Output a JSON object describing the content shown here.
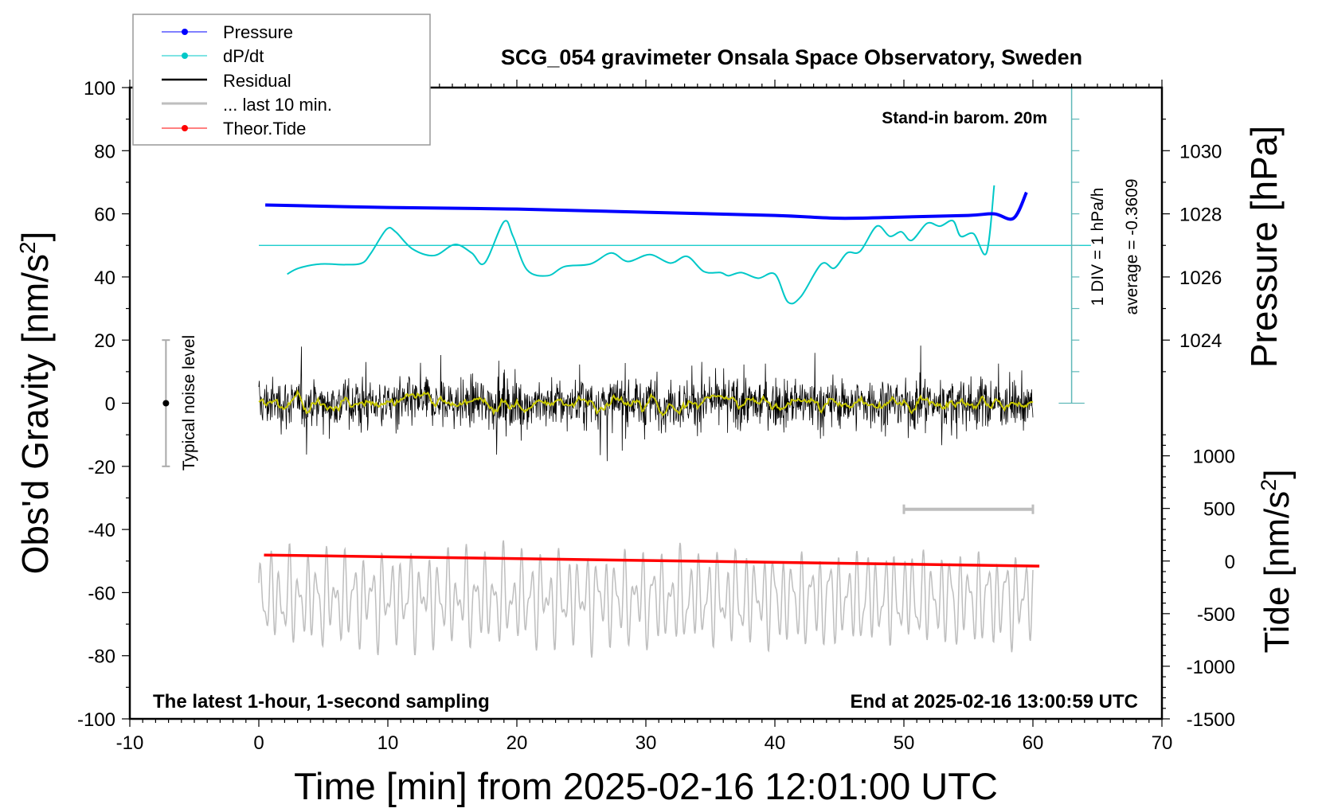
{
  "chart_data": {
    "type": "line",
    "title": "SCG_054 gravimeter Onsala Space Observatory, Sweden",
    "xlabel": "Time [min] from 2025-02-16 12:01:00 UTC",
    "ylabel": "Obs'd Gravity [nm/s",
    "ylabel_sup": "2",
    "ylabel_end": "]",
    "right_ylabel_pressure": "Pressure [hPa]",
    "right_ylabel_tide": "Tide [nm/s",
    "right_ylabel_tide_sup": "2",
    "right_ylabel_tide_end": "]",
    "xlim": [
      -10,
      70
    ],
    "ylim": [
      -100,
      100
    ],
    "x_ticks": [
      "-10",
      "0",
      "10",
      "20",
      "30",
      "40",
      "50",
      "60",
      "70"
    ],
    "y_ticks": [
      "100",
      "80",
      "60",
      "40",
      "20",
      "0",
      "-20",
      "-40",
      "-60",
      "-80",
      "-100"
    ],
    "pressure_ticks": [
      "1030",
      "1028",
      "1026",
      "1024"
    ],
    "tide_ticks": [
      "1000",
      "500",
      "0",
      "-500",
      "-1000",
      "-1500"
    ],
    "annotations": {
      "barometer": "Stand-in barom. 20m",
      "bottom_left": "The latest 1-hour, 1-second sampling",
      "bottom_right": "End at 2025-02-16 13:00:59 UTC",
      "div_scale": "1 DIV = 1 hPa/h",
      "average": "average = -0.3609",
      "noise_label": "Typical noise level"
    },
    "legend": {
      "placement": "top-left",
      "entries": [
        {
          "label": "Pressure",
          "color": "#0000ff",
          "marker": true
        },
        {
          "label": "dP/dt",
          "color": "#00c8c8",
          "marker": true
        },
        {
          "label": "Residual",
          "color": "#000000",
          "marker": false
        },
        {
          "label": "... last 10 min.",
          "color": "#bebebe",
          "marker": false
        },
        {
          "label": "Theor.Tide",
          "color": "#ff0000",
          "marker": true
        }
      ]
    },
    "series": [
      {
        "name": "Pressure",
        "unit": "hPa",
        "color": "#0000ff",
        "points": [
          [
            0.5,
            1028.28
          ],
          [
            10,
            1028.2
          ],
          [
            20,
            1028.15
          ],
          [
            30,
            1028.05
          ],
          [
            40,
            1027.95
          ],
          [
            45,
            1027.86
          ],
          [
            50,
            1027.9
          ],
          [
            55,
            1027.95
          ],
          [
            57,
            1028.0
          ],
          [
            58.5,
            1027.86
          ],
          [
            59.5,
            1028.68
          ]
        ]
      },
      {
        "name": "dP/dt",
        "unit": "gravity-axis units (baseline 50 = average, 1 DIV = 10)",
        "color": "#00c8c8",
        "points": [
          [
            2.2,
            40.9
          ],
          [
            3.1,
            42.8
          ],
          [
            4.8,
            44.1
          ],
          [
            6.7,
            43.9
          ],
          [
            8.0,
            44.4
          ],
          [
            8.7,
            47.6
          ],
          [
            9.9,
            55.1
          ],
          [
            10.6,
            54.3
          ],
          [
            11.9,
            48.9
          ],
          [
            13.6,
            46.8
          ],
          [
            15.2,
            50.3
          ],
          [
            16.5,
            47.6
          ],
          [
            17.5,
            44.4
          ],
          [
            19.0,
            57.5
          ],
          [
            19.7,
            52.9
          ],
          [
            20.8,
            42.2
          ],
          [
            22.4,
            40.4
          ],
          [
            23.7,
            43.3
          ],
          [
            25.7,
            44.1
          ],
          [
            27.3,
            47.6
          ],
          [
            28.6,
            44.9
          ],
          [
            30.3,
            47.1
          ],
          [
            31.9,
            44.4
          ],
          [
            33.2,
            46.5
          ],
          [
            34.5,
            41.7
          ],
          [
            35.8,
            41.4
          ],
          [
            36.4,
            40.4
          ],
          [
            37.4,
            41.4
          ],
          [
            38.7,
            39.6
          ],
          [
            40.0,
            40.9
          ],
          [
            41.0,
            32.1
          ],
          [
            42.0,
            33.7
          ],
          [
            43.6,
            44.1
          ],
          [
            44.6,
            42.8
          ],
          [
            45.6,
            47.6
          ],
          [
            46.6,
            48.1
          ],
          [
            47.9,
            56.1
          ],
          [
            48.9,
            52.9
          ],
          [
            49.8,
            54.3
          ],
          [
            50.6,
            51.6
          ],
          [
            51.8,
            57.0
          ],
          [
            52.8,
            56.1
          ],
          [
            53.8,
            57.8
          ],
          [
            54.4,
            52.9
          ],
          [
            55.4,
            53.7
          ],
          [
            56.4,
            47.6
          ],
          [
            57.0,
            69.0
          ]
        ],
        "baseline": 50
      },
      {
        "name": "Residual",
        "unit": "nm/s2",
        "color": "#000000",
        "range_min": 0,
        "range_max": 60,
        "typical_amplitude": 12,
        "max_spike": 28
      },
      {
        "name": "Residual smoothed",
        "unit": "nm/s2",
        "color": "#c8c800",
        "typical_amplitude": 2
      },
      {
        "name": "... last 10 min.",
        "color": "#bebebe",
        "center": -62,
        "typical_amplitude": 15,
        "x_range": [
          0,
          60
        ]
      },
      {
        "name": "Theor.Tide",
        "unit": "nm/s2",
        "color": "#ff0000",
        "points": [
          [
            0.4,
            57
          ],
          [
            60.5,
            -48
          ]
        ]
      }
    ],
    "noise_bar": {
      "x": -7.2,
      "low": -20,
      "high": 20,
      "center": 0
    },
    "ten_min_scale": {
      "from": 50,
      "to": 60,
      "y": -33.6
    },
    "dpdt_axis": {
      "x": 63,
      "from": 0,
      "to": 100,
      "div": 10
    }
  }
}
